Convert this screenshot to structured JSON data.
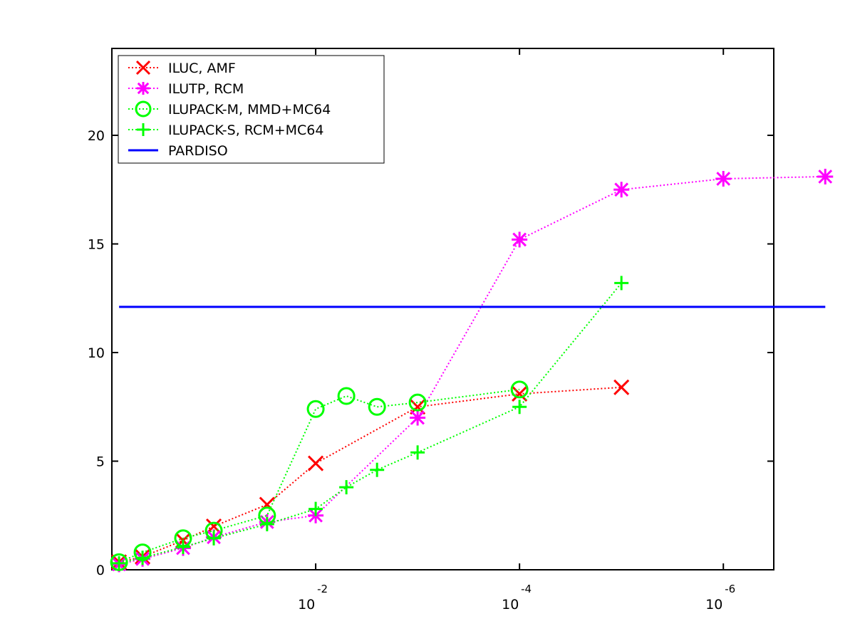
{
  "chart_data": {
    "type": "line",
    "title": "",
    "xlabel": "",
    "ylabel": "",
    "x_scale": "log-reversed",
    "xlim": [
      1,
      3.2e-07
    ],
    "ylim": [
      0,
      24
    ],
    "grid": false,
    "legend_position": "top-left",
    "x_tick_labels": [
      {
        "value": 0.01,
        "base": "10",
        "exp": "-2"
      },
      {
        "value": 0.0001,
        "base": "10",
        "exp": "-4"
      },
      {
        "value": 1e-06,
        "base": "10",
        "exp": "-6"
      }
    ],
    "y_ticks": [
      0,
      5,
      10,
      15,
      20
    ],
    "series": [
      {
        "name": "ILUC, AMF",
        "color": "#ff0000",
        "marker": "x",
        "line": "dotted",
        "x": [
          0.85,
          0.5,
          0.2,
          0.1,
          0.03,
          0.01,
          0.001,
          0.0001,
          1e-05
        ],
        "y": [
          0.35,
          0.6,
          1.35,
          2.0,
          3.0,
          4.9,
          7.5,
          8.1,
          8.4
        ]
      },
      {
        "name": "ILUTP, RCM",
        "color": "#ff00ff",
        "marker": "asterisk",
        "line": "dotted",
        "x": [
          0.85,
          0.5,
          0.2,
          0.1,
          0.03,
          0.01,
          0.001,
          0.0001,
          1e-05,
          1e-06,
          1e-07
        ],
        "y": [
          0.25,
          0.5,
          1.0,
          1.5,
          2.2,
          2.5,
          7.0,
          15.2,
          17.5,
          18.0,
          18.1
        ]
      },
      {
        "name": "ILUPACK-M, MMD+MC64",
        "color": "#00ff00",
        "marker": "circle",
        "line": "dotted",
        "x": [
          0.85,
          0.5,
          0.2,
          0.1,
          0.03,
          0.01,
          0.005,
          0.0025,
          0.001,
          0.0001
        ],
        "y": [
          0.35,
          0.8,
          1.45,
          1.8,
          2.5,
          7.4,
          8.0,
          7.5,
          7.7,
          8.3
        ]
      },
      {
        "name": "ILUPACK-S, RCM+MC64",
        "color": "#00ff00",
        "marker": "plus",
        "line": "dotted",
        "x": [
          0.85,
          0.5,
          0.2,
          0.1,
          0.03,
          0.01,
          0.005,
          0.0025,
          0.001,
          0.0001,
          1e-05
        ],
        "y": [
          0.3,
          0.55,
          1.05,
          1.45,
          2.1,
          2.8,
          3.8,
          4.6,
          5.4,
          7.5,
          13.2
        ]
      },
      {
        "name": "PARDISO",
        "color": "#0000ff",
        "marker": "none",
        "line": "solid",
        "x": [
          0.85,
          1e-07
        ],
        "y": [
          12.1,
          12.1
        ]
      }
    ]
  }
}
